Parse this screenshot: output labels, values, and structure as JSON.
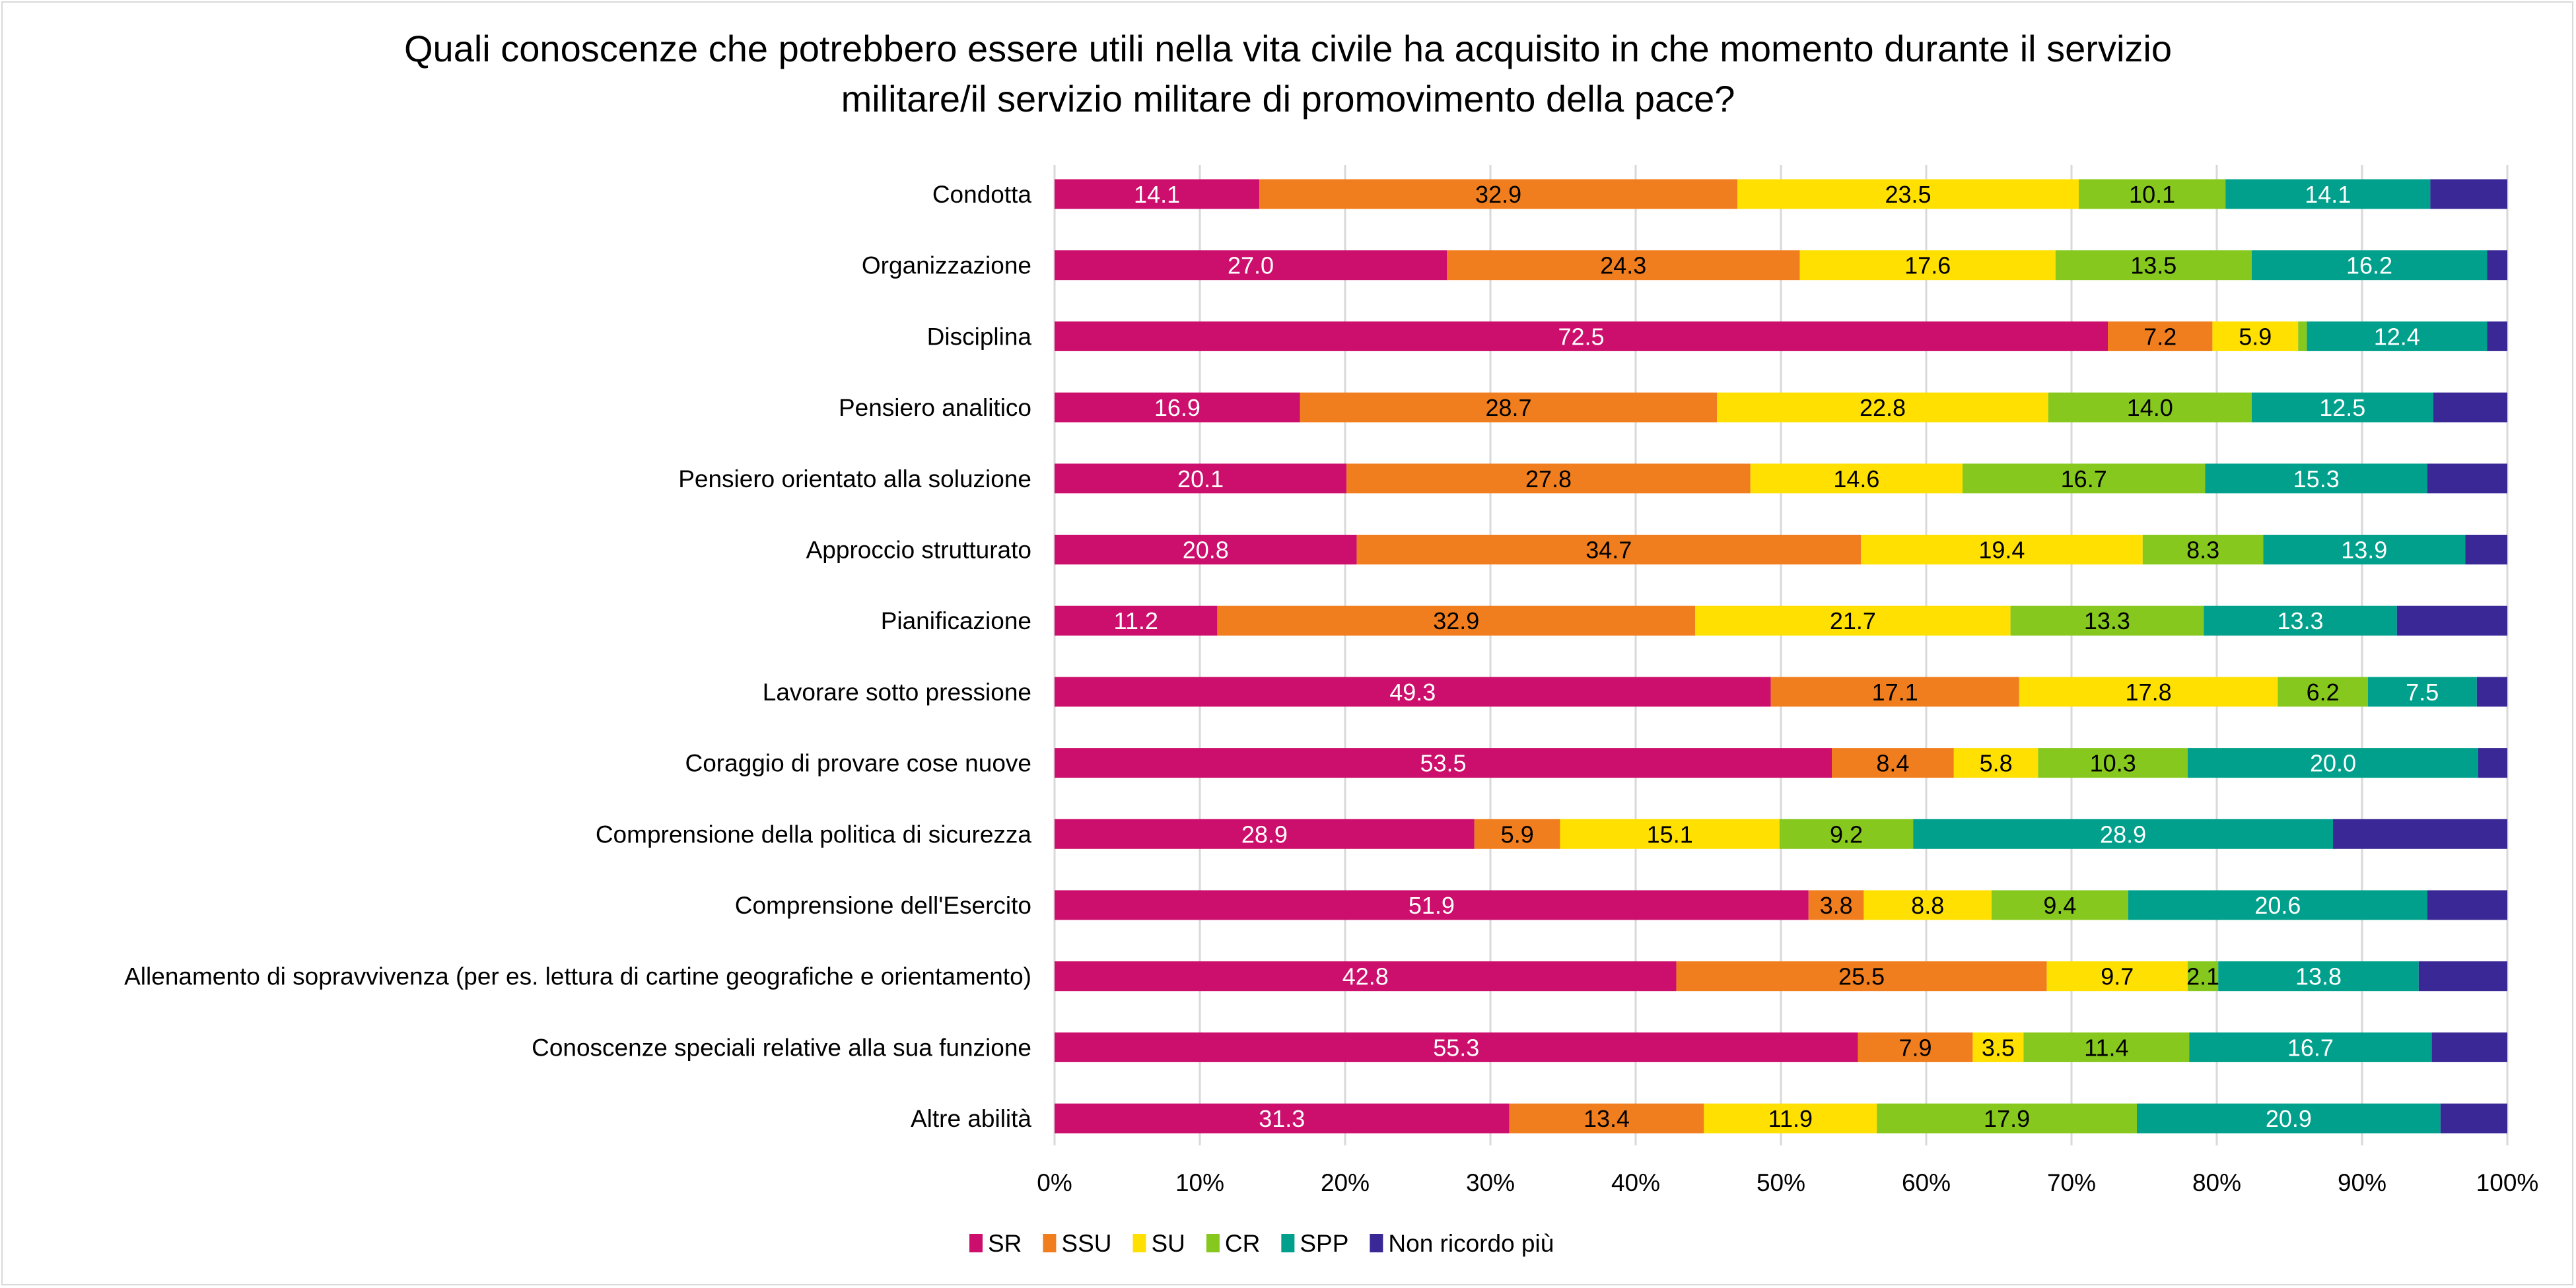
{
  "chart_data": {
    "type": "bar",
    "orientation": "horizontal",
    "stacked": "percent",
    "title_lines": [
      "Quali conoscenze che potrebbero essere utili nella vita civile ha acquisito in che momento durante il servizio",
      "militare/il servizio militare di promovimento della pace?"
    ],
    "xlabel": "",
    "ylabel": "",
    "xlim": [
      0,
      100
    ],
    "x_ticks": [
      "0%",
      "10%",
      "20%",
      "30%",
      "40%",
      "50%",
      "60%",
      "70%",
      "80%",
      "90%",
      "100%"
    ],
    "grid": "vertical",
    "legend_position": "bottom",
    "categories": [
      "Condotta",
      "Organizzazione",
      "Disciplina",
      "Pensiero analitico",
      "Pensiero orientato alla soluzione",
      "Approccio strutturato",
      "Pianificazione",
      "Lavorare sotto pressione",
      "Coraggio di provare cose nuove",
      "Comprensione della politica di sicurezza",
      "Comprensione dell'Esercito",
      "Allenamento di sopravvivenza (per es. lettura di cartine geografiche e orientamento)",
      "Conoscenze speciali relative alla sua funzione",
      "Altre abilità"
    ],
    "series": [
      {
        "name": "SR",
        "color": "#CC0E6C",
        "label_color": "#ffffff",
        "show_labels": true,
        "values": [
          14.1,
          27.0,
          72.5,
          16.9,
          20.1,
          20.8,
          11.2,
          49.3,
          53.5,
          28.9,
          51.9,
          42.8,
          55.3,
          31.3
        ]
      },
      {
        "name": "SSU",
        "color": "#F07E1E",
        "label_color": "#000000",
        "show_labels": true,
        "values": [
          32.9,
          24.3,
          7.2,
          28.7,
          27.8,
          34.7,
          32.9,
          17.1,
          8.4,
          5.9,
          3.8,
          25.5,
          7.9,
          13.4
        ]
      },
      {
        "name": "SU",
        "color": "#FFE000",
        "label_color": "#000000",
        "show_labels": true,
        "values": [
          23.5,
          17.6,
          5.9,
          22.8,
          14.6,
          19.4,
          21.7,
          17.8,
          5.8,
          15.1,
          8.8,
          9.7,
          3.5,
          11.9
        ]
      },
      {
        "name": "CR",
        "color": "#86C81E",
        "label_color": "#000000",
        "show_labels": true,
        "values": [
          10.1,
          13.5,
          0.6,
          14.0,
          16.7,
          8.3,
          13.3,
          6.2,
          10.3,
          9.2,
          9.4,
          2.1,
          11.4,
          17.9
        ],
        "unlabeled_index": [
          2
        ]
      },
      {
        "name": "SPP",
        "color": "#00A08C",
        "label_color": "#ffffff",
        "show_labels": true,
        "values": [
          14.1,
          16.2,
          12.4,
          12.5,
          15.3,
          13.9,
          13.3,
          7.5,
          20.0,
          28.9,
          20.6,
          13.8,
          16.7,
          20.9
        ]
      },
      {
        "name": "Non ricordo più",
        "color": "#3A2896",
        "label_color": "#ffffff",
        "show_labels": false,
        "values": [
          5.3,
          1.4,
          1.4,
          5.1,
          5.5,
          2.9,
          7.6,
          2.1,
          2.0,
          12.0,
          5.5,
          6.1,
          5.2,
          4.6
        ]
      }
    ]
  }
}
